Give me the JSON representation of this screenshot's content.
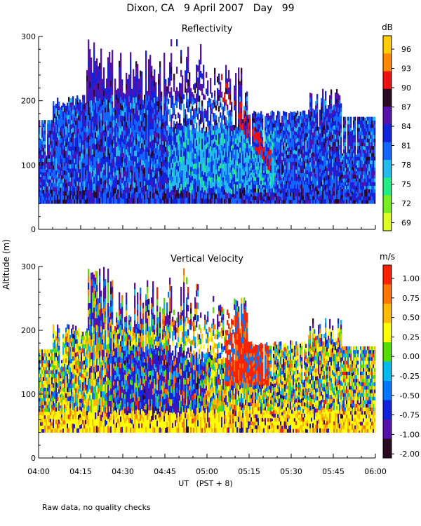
{
  "figure": {
    "title": "Dixon, CA   9 April 2007   Day   99",
    "shared_ylabel": "Altitude  (m)",
    "xlabel": "UT   (PST + 8)",
    "footnote": "Raw data, no quality checks"
  },
  "chart_data": [
    {
      "type": "heatmap",
      "title": "Reflectivity",
      "colorbar_label": "dB",
      "x_range": [
        "04:00",
        "06:00"
      ],
      "x_ticks": [
        "04:00",
        "04:15",
        "04:30",
        "04:45",
        "05:00",
        "05:15",
        "05:30",
        "05:45",
        "06:00"
      ],
      "ylim": [
        0,
        300
      ],
      "y_ticks": [
        0,
        100,
        200,
        300
      ],
      "data_altitude_range_m": [
        40,
        300
      ],
      "colorbar_ticks": [
        "69",
        "72",
        "75",
        "78",
        "81",
        "84",
        "87",
        "90",
        "93",
        "96"
      ],
      "colorbar_colors": [
        "#ddff22",
        "#77ee22",
        "#22ee88",
        "#22bbee",
        "#1166ff",
        "#1122dd",
        "#5511aa",
        "#2a0a22",
        "#ee1111",
        "#ff8800",
        "#ffcc00"
      ],
      "dominant_values_db": [
        81,
        84,
        87
      ],
      "features": "echoes mostly 40-180 m with tops reaching 300 m near 04:20 and 04:50; red 90 dB streak descending from ~220 m at 05:05 to ~100 m at 05:20"
    },
    {
      "type": "heatmap",
      "title": "Vertical Velocity",
      "colorbar_label": "m/s",
      "x_range": [
        "04:00",
        "06:00"
      ],
      "x_ticks": [
        "04:00",
        "04:15",
        "04:30",
        "04:45",
        "05:00",
        "05:15",
        "05:30",
        "05:45",
        "06:00"
      ],
      "ylim": [
        0,
        300
      ],
      "y_ticks": [
        0,
        100,
        200,
        300
      ],
      "data_altitude_range_m": [
        40,
        300
      ],
      "colorbar_ticks": [
        "1.00",
        "0.75",
        "0.50",
        "0.25",
        "0.00",
        "-0.25",
        "-0.50",
        "-0.75",
        "-1.00",
        "-2.00"
      ],
      "colorbar_colors": [
        "#ff2200",
        "#ff7700",
        "#ffbb00",
        "#ffff00",
        "#55dd00",
        "#00bbee",
        "#0077ff",
        "#1122dd",
        "#5511aa",
        "#2a0a22"
      ],
      "features": "yellow near-surface layer 40-70 m; updraft region (red, ~1 m/s) around 05:10-05:20 between 120 and 220 m"
    }
  ]
}
